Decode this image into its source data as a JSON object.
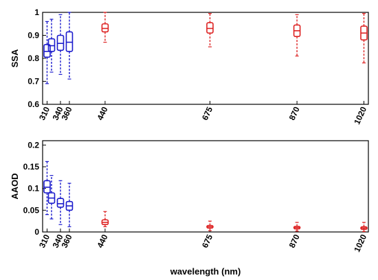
{
  "chart_data": [
    {
      "type": "boxplot",
      "ylabel": "SSA",
      "xlabel": "",
      "ylim": [
        0.6,
        1.0
      ],
      "yticks": [
        "0.6",
        "0.7",
        "0.8",
        "0.9",
        "1"
      ],
      "xlim": [
        300,
        1030
      ],
      "xticks": [
        "310",
        "340",
        "360",
        "440",
        "675",
        "870",
        "1020"
      ],
      "grid": false,
      "boxes": [
        {
          "x": 310,
          "whislo": 0.69,
          "q1": 0.805,
          "med": 0.83,
          "q3": 0.86,
          "whishi": 0.96,
          "color": "#1a1acc"
        },
        {
          "x": 320,
          "whislo": 0.74,
          "q1": 0.83,
          "med": 0.855,
          "q3": 0.885,
          "whishi": 0.97,
          "color": "#1a1acc"
        },
        {
          "x": 340,
          "whislo": 0.73,
          "q1": 0.835,
          "med": 0.865,
          "q3": 0.9,
          "whishi": 0.99,
          "color": "#1a1acc"
        },
        {
          "x": 360,
          "whislo": 0.71,
          "q1": 0.83,
          "med": 0.87,
          "q3": 0.915,
          "whishi": 1.0,
          "color": "#1a1acc"
        },
        {
          "x": 440,
          "whislo": 0.87,
          "q1": 0.915,
          "med": 0.93,
          "q3": 0.95,
          "whishi": 1.0,
          "color": "#dd2222"
        },
        {
          "x": 675,
          "whislo": 0.85,
          "q1": 0.91,
          "med": 0.93,
          "q3": 0.955,
          "whishi": 0.995,
          "color": "#dd2222"
        },
        {
          "x": 870,
          "whislo": 0.81,
          "q1": 0.895,
          "med": 0.92,
          "q3": 0.945,
          "whishi": 0.99,
          "color": "#dd2222"
        },
        {
          "x": 1020,
          "whislo": 0.78,
          "q1": 0.88,
          "med": 0.91,
          "q3": 0.94,
          "whishi": 0.995,
          "color": "#dd2222"
        }
      ]
    },
    {
      "type": "boxplot",
      "ylabel": "AAOD",
      "xlabel": "wavelength (nm)",
      "ylim": [
        0,
        0.21
      ],
      "yticks": [
        "0",
        "0.05",
        "0.1",
        "0.15",
        "0.2"
      ],
      "xlim": [
        300,
        1030
      ],
      "xticks": [
        "310",
        "340",
        "360",
        "440",
        "675",
        "870",
        "1020"
      ],
      "grid": false,
      "boxes": [
        {
          "x": 310,
          "whislo": 0.04,
          "q1": 0.09,
          "med": 0.103,
          "q3": 0.118,
          "whishi": 0.162,
          "color": "#1a1acc"
        },
        {
          "x": 320,
          "whislo": 0.03,
          "q1": 0.066,
          "med": 0.078,
          "q3": 0.09,
          "whishi": 0.13,
          "color": "#1a1acc"
        },
        {
          "x": 340,
          "whislo": 0.017,
          "q1": 0.057,
          "med": 0.065,
          "q3": 0.077,
          "whishi": 0.118,
          "color": "#1a1acc"
        },
        {
          "x": 360,
          "whislo": 0.012,
          "q1": 0.05,
          "med": 0.06,
          "q3": 0.07,
          "whishi": 0.112,
          "color": "#1a1acc"
        },
        {
          "x": 440,
          "whislo": 0.012,
          "q1": 0.017,
          "med": 0.022,
          "q3": 0.028,
          "whishi": 0.047,
          "color": "#dd2222"
        },
        {
          "x": 675,
          "whislo": 0.003,
          "q1": 0.009,
          "med": 0.012,
          "q3": 0.015,
          "whishi": 0.025,
          "color": "#dd2222"
        },
        {
          "x": 870,
          "whislo": 0.002,
          "q1": 0.007,
          "med": 0.01,
          "q3": 0.013,
          "whishi": 0.022,
          "color": "#dd2222"
        },
        {
          "x": 1020,
          "whislo": 0.001,
          "q1": 0.006,
          "med": 0.009,
          "q3": 0.012,
          "whishi": 0.022,
          "color": "#dd2222"
        }
      ]
    }
  ]
}
